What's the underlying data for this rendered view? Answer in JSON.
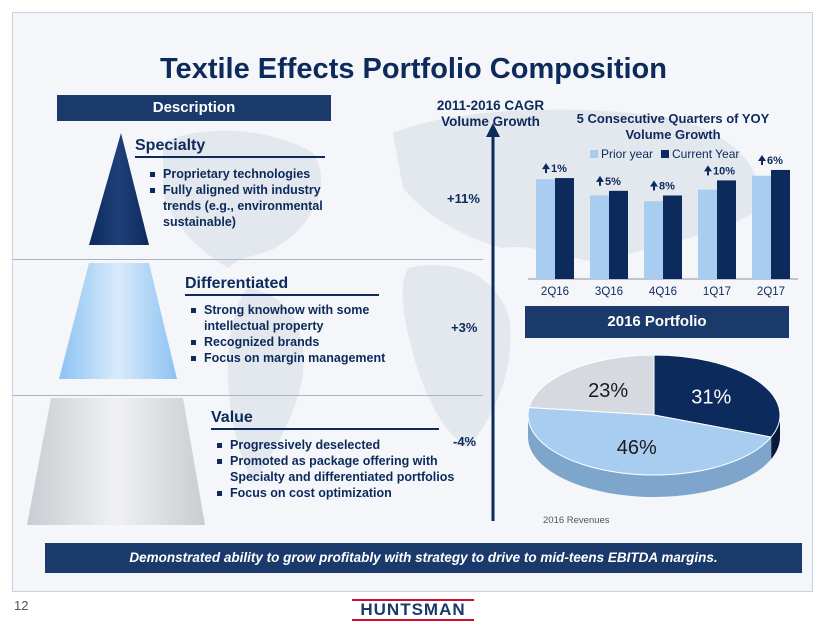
{
  "slide": {
    "title": "Textile Effects Portfolio Composition",
    "page_number": "12",
    "logo_text": "HUNTSMAN"
  },
  "description": {
    "header": "Description",
    "cagr_title_line1": "2011-2016 CAGR",
    "cagr_title_line2": "Volume Growth",
    "sections": [
      {
        "title": "Specialty",
        "growth": "+11%",
        "bullets": [
          "Proprietary technologies",
          "Fully aligned with industry trends (e.g., environmental sustainable)"
        ]
      },
      {
        "title": "Differentiated",
        "growth": "+3%",
        "bullets": [
          "Strong knowhow with some intellectual property",
          "Recognized brands",
          "Focus on margin management"
        ]
      },
      {
        "title": "Value",
        "growth": "-4%",
        "bullets": [
          "Progressively deselected",
          "Promoted as package offering with Specialty and differentiated portfolios",
          "Focus on cost optimization"
        ]
      }
    ]
  },
  "colors": {
    "navy": "#1a3a6b",
    "dark_navy": "#0d2a5c",
    "light_blue": "#a9cdf0",
    "pie_gray": "#d6dae0",
    "huntsman_red": "#c8102e"
  },
  "chart_data": [
    {
      "type": "bar",
      "title": "5 Consecutive Quarters of YOY Volume Growth",
      "categories": [
        "2Q16",
        "3Q16",
        "4Q16",
        "1Q17",
        "2Q17"
      ],
      "series": [
        {
          "name": "Prior year",
          "values": [
            86,
            72,
            67,
            77,
            89
          ]
        },
        {
          "name": "Current Year",
          "values": [
            87,
            76,
            72,
            85,
            94
          ]
        }
      ],
      "data_labels": [
        "1%",
        "5%",
        "8%",
        "10%",
        "6%"
      ],
      "ylim": [
        0,
        100
      ],
      "legend": "top",
      "grid": false
    },
    {
      "type": "pie",
      "title": "2016 Portfolio",
      "labels": [
        "31%",
        "46%",
        "23%"
      ],
      "values": [
        31,
        46,
        23
      ],
      "note": "2016 Revenues"
    }
  ],
  "footer": {
    "statement": "Demonstrated ability to grow profitably with strategy to drive to mid-teens EBITDA margins."
  }
}
